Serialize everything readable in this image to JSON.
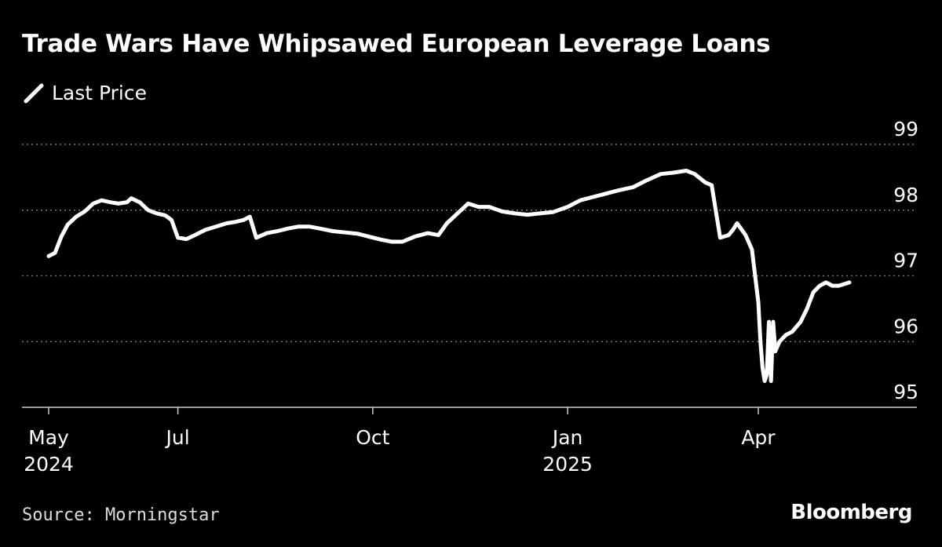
{
  "chart_data": {
    "type": "line",
    "title": "Trade Wars Have Whipsawed European Leverage Loans",
    "legend": {
      "placement": "top-left",
      "entries": [
        "Last Price"
      ]
    },
    "xlabel": "",
    "ylabel": "",
    "ylim": [
      95,
      99
    ],
    "yticks": [
      99,
      98,
      97,
      96,
      95
    ],
    "grid": true,
    "xticks": [
      {
        "x": "2024-05-01",
        "label": "May",
        "sublabel": "2024"
      },
      {
        "x": "2024-07-01",
        "label": "Jul",
        "sublabel": ""
      },
      {
        "x": "2024-10-01",
        "label": "Oct",
        "sublabel": ""
      },
      {
        "x": "2025-01-01",
        "label": "Jan",
        "sublabel": "2025"
      },
      {
        "x": "2025-04-01",
        "label": "Apr",
        "sublabel": ""
      }
    ],
    "series": [
      {
        "name": "Last Price",
        "color": "#ffffff",
        "x": [
          "2024-05-01",
          "2024-05-04",
          "2024-05-07",
          "2024-05-10",
          "2024-05-14",
          "2024-05-18",
          "2024-05-22",
          "2024-05-26",
          "2024-05-30",
          "2024-06-03",
          "2024-06-07",
          "2024-06-09",
          "2024-06-13",
          "2024-06-17",
          "2024-06-21",
          "2024-06-25",
          "2024-06-28",
          "2024-07-01",
          "2024-07-05",
          "2024-07-09",
          "2024-07-14",
          "2024-07-19",
          "2024-07-24",
          "2024-07-28",
          "2024-08-01",
          "2024-08-04",
          "2024-08-07",
          "2024-08-12",
          "2024-08-17",
          "2024-08-22",
          "2024-08-27",
          "2024-09-01",
          "2024-09-06",
          "2024-09-12",
          "2024-09-18",
          "2024-09-24",
          "2024-09-30",
          "2024-10-05",
          "2024-10-10",
          "2024-10-15",
          "2024-10-21",
          "2024-10-27",
          "2024-11-01",
          "2024-11-05",
          "2024-11-10",
          "2024-11-15",
          "2024-11-20",
          "2024-11-25",
          "2024-12-01",
          "2024-12-07",
          "2024-12-13",
          "2024-12-19",
          "2024-12-25",
          "2025-01-01",
          "2025-01-07",
          "2025-01-13",
          "2025-01-19",
          "2025-01-25",
          "2025-02-01",
          "2025-02-07",
          "2025-02-14",
          "2025-02-20",
          "2025-02-26",
          "2025-03-02",
          "2025-03-07",
          "2025-03-10",
          "2025-03-14",
          "2025-03-18",
          "2025-03-20",
          "2025-03-22",
          "2025-03-26",
          "2025-03-29",
          "2025-04-01",
          "2025-04-02",
          "2025-04-03",
          "2025-04-04",
          "2025-04-05",
          "2025-04-06",
          "2025-04-07",
          "2025-04-08",
          "2025-04-09",
          "2025-04-11",
          "2025-04-14",
          "2025-04-17",
          "2025-04-21",
          "2025-04-24",
          "2025-04-27",
          "2025-04-30",
          "2025-05-03",
          "2025-05-06",
          "2025-05-09",
          "2025-05-12",
          "2025-05-14"
        ],
        "values": [
          97.3,
          97.35,
          97.6,
          97.78,
          97.9,
          97.98,
          98.1,
          98.15,
          98.12,
          98.1,
          98.12,
          98.18,
          98.12,
          98.0,
          97.95,
          97.92,
          97.85,
          97.58,
          97.56,
          97.62,
          97.7,
          97.75,
          97.8,
          97.82,
          97.85,
          97.9,
          97.58,
          97.65,
          97.68,
          97.72,
          97.75,
          97.75,
          97.72,
          97.68,
          97.66,
          97.64,
          97.59,
          97.55,
          97.52,
          97.52,
          97.6,
          97.65,
          97.62,
          97.8,
          97.95,
          98.1,
          98.05,
          98.05,
          97.98,
          97.95,
          97.93,
          97.95,
          97.97,
          98.05,
          98.15,
          98.2,
          98.25,
          98.3,
          98.35,
          98.45,
          98.55,
          98.57,
          98.6,
          98.55,
          98.42,
          98.38,
          97.58,
          97.62,
          97.7,
          97.8,
          97.62,
          97.4,
          96.6,
          96.0,
          95.6,
          95.4,
          95.5,
          96.3,
          95.4,
          96.3,
          95.85,
          96.0,
          96.1,
          96.15,
          96.3,
          96.5,
          96.75,
          96.85,
          96.9,
          96.85,
          96.85,
          96.88,
          96.9
        ]
      }
    ]
  },
  "footer": {
    "source": "Source: Morningstar",
    "brand": "Bloomberg"
  }
}
